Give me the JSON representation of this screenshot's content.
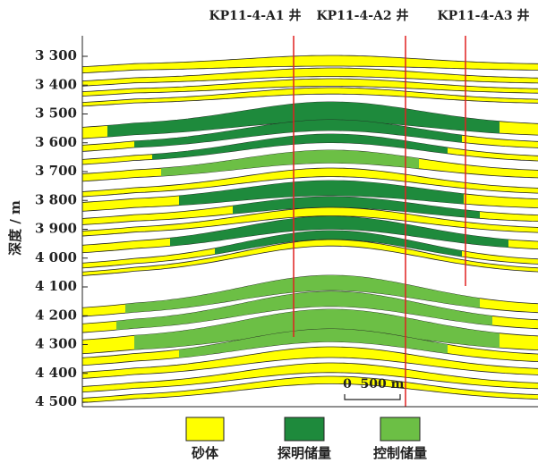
{
  "wells": [
    {
      "label": "KP11-4-A1 井"
    },
    {
      "label": "KP11-4-A2 井"
    },
    {
      "label": "KP11-4-A3 井"
    }
  ],
  "y_axis": {
    "label": "深度 / m",
    "ticks": [
      {
        "value": 3300,
        "label": "3 300"
      },
      {
        "value": 3400,
        "label": "3 400"
      },
      {
        "value": 3500,
        "label": "3 500"
      },
      {
        "value": 3600,
        "label": "3 600"
      },
      {
        "value": 3700,
        "label": "3 700"
      },
      {
        "value": 3800,
        "label": "3 800"
      },
      {
        "value": 3900,
        "label": "3 900"
      },
      {
        "value": 4000,
        "label": "4 000"
      },
      {
        "value": 4100,
        "label": "4 100"
      },
      {
        "value": 4200,
        "label": "4 200"
      },
      {
        "value": 4300,
        "label": "4 300"
      },
      {
        "value": 4400,
        "label": "4 400"
      },
      {
        "value": 4500,
        "label": "4 500"
      }
    ]
  },
  "scale_bar": {
    "zero": "0",
    "length": "500 m"
  },
  "legend": [
    {
      "label": "砂体"
    },
    {
      "label": "探明储量"
    },
    {
      "label": "控制储量"
    }
  ]
}
